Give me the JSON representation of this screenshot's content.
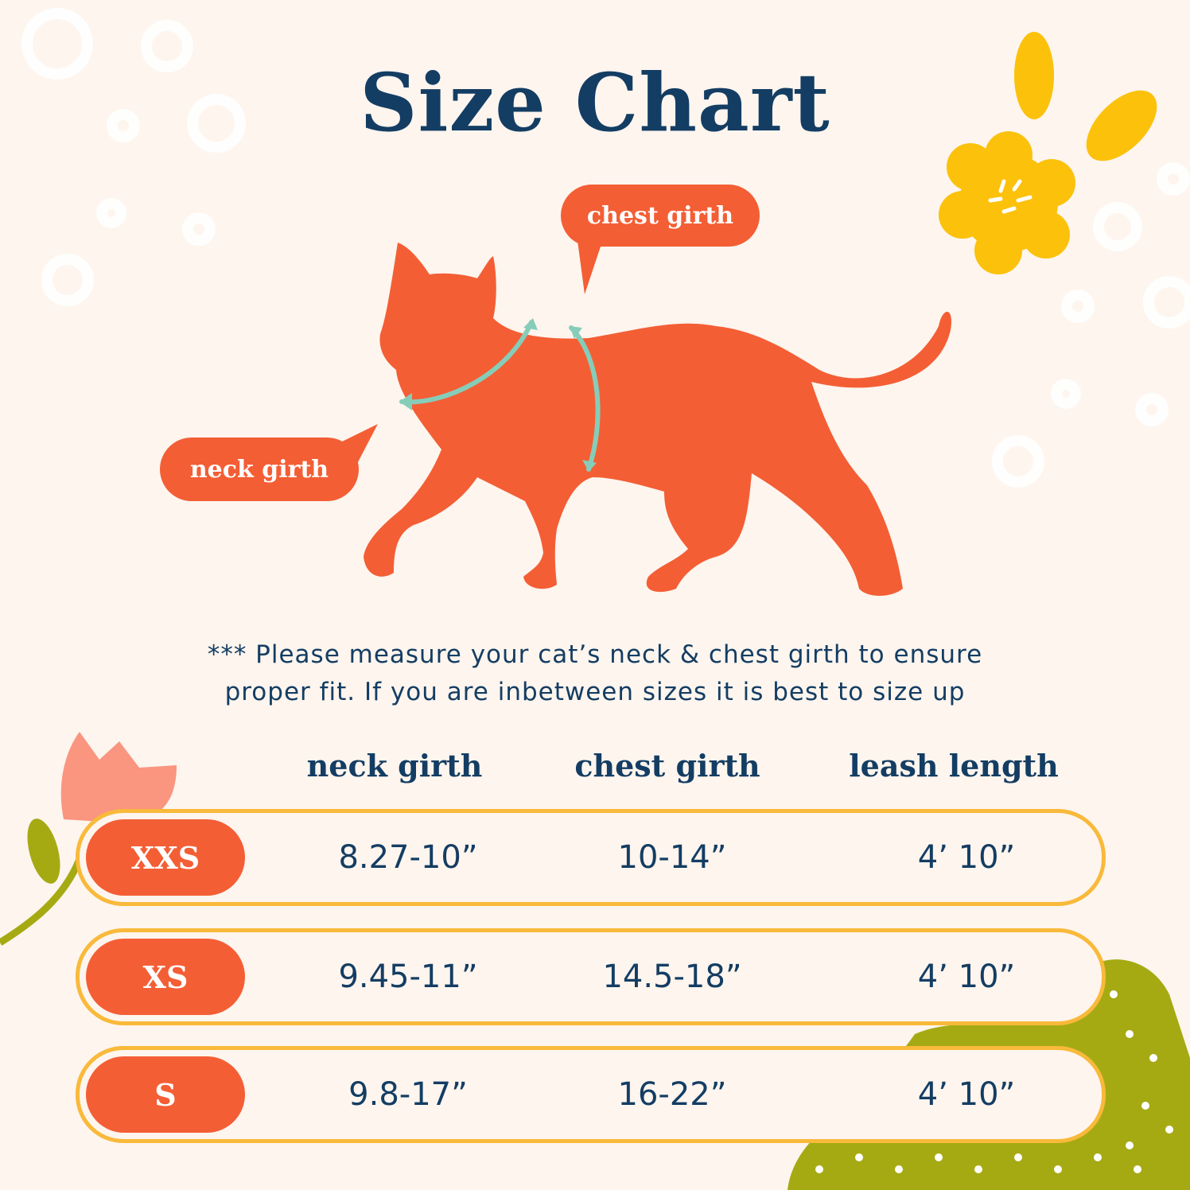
{
  "title": "Size Chart",
  "callouts": {
    "chest": "chest girth",
    "neck": "neck girth"
  },
  "note_line1": "*** Please measure your cat’s neck & chest girth to ensure",
  "note_line2": "proper fit. If you are inbetween sizes it is best to size up",
  "table": {
    "headers": [
      "neck girth",
      "chest girth",
      "leash length"
    ],
    "rows": [
      {
        "size": "XXS",
        "neck": "8.27-10”",
        "chest": "10-14”",
        "leash": "4’ 10”"
      },
      {
        "size": "XS",
        "neck": "9.45-11”",
        "chest": "14.5-18”",
        "leash": "4’ 10”"
      },
      {
        "size": "S",
        "neck": "9.8-17”",
        "chest": "16-22”",
        "leash": "4’ 10”"
      }
    ]
  },
  "colors": {
    "background": "#fdf5ee",
    "navy": "#143d63",
    "orange": "#f45e35",
    "gold": "#f9b93a",
    "teal": "#86cdb9",
    "yellow": "#fcc10b",
    "olive": "#a5aa13",
    "pink": "#fa9580"
  }
}
